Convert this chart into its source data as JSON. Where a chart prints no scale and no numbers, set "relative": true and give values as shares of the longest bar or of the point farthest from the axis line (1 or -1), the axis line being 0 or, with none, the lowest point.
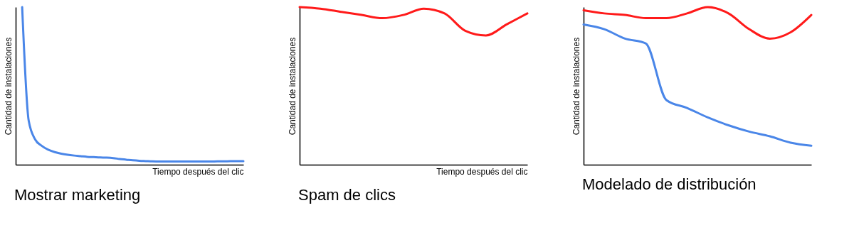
{
  "chart_data": [
    {
      "type": "line",
      "title": "Mostrar marketing",
      "xlabel": "Tiempo después del clic",
      "ylabel": "Cantidad de instalaciones",
      "relative": true,
      "tick_labels": false,
      "categories": [
        null,
        null,
        null,
        null,
        null,
        null,
        null,
        null,
        null,
        null,
        null,
        null,
        null,
        null,
        null,
        null,
        null,
        null,
        null,
        null,
        null,
        null,
        null,
        null,
        null,
        null,
        null,
        null,
        null,
        null,
        null,
        null,
        null,
        null,
        null,
        null
      ],
      "series": [
        {
          "color": "#4a86e8",
          "values": [
            null,
            1.0,
            0.28,
            0.16,
            0.12,
            0.095,
            0.08,
            0.07,
            0.063,
            0.058,
            0.054,
            0.05,
            0.048,
            0.046,
            0.045,
            0.042,
            0.036,
            0.032,
            0.028,
            0.025,
            0.023,
            0.021,
            0.02,
            0.02,
            0.02,
            0.02,
            0.02,
            0.02,
            0.02,
            0.02,
            0.02,
            0.021,
            0.021,
            0.022,
            0.022,
            0.022
          ]
        }
      ]
    },
    {
      "type": "line",
      "title": "Spam de clics",
      "xlabel": "Tiempo después del clic",
      "ylabel": "Cantidad de instalaciones",
      "relative": true,
      "tick_labels": false,
      "categories": [
        null,
        null,
        null,
        null,
        null,
        null,
        null,
        null,
        null,
        null,
        null,
        null
      ],
      "series": [
        {
          "color": "#ff1a1a",
          "values": [
            1.0,
            0.99,
            0.97,
            0.95,
            0.93,
            0.95,
            0.99,
            0.96,
            0.85,
            0.82,
            0.89,
            0.96
          ]
        }
      ]
    },
    {
      "type": "line",
      "title": "Modelado de distribución",
      "ylabel": "Cantidad de instalaciones",
      "relative": true,
      "tick_labels": false,
      "categories": [
        null,
        null,
        null,
        null,
        null,
        null,
        null,
        null,
        null,
        null,
        null,
        null
      ],
      "series": [
        {
          "color": "#ff1a1a",
          "values": [
            0.98,
            0.96,
            0.95,
            0.93,
            0.93,
            0.96,
            1.0,
            0.96,
            0.86,
            0.8,
            0.84,
            0.95
          ]
        },
        {
          "color": "#4a86e8",
          "values": [
            0.89,
            0.86,
            0.8,
            0.77,
            0.41,
            0.36,
            0.3,
            0.25,
            0.21,
            0.18,
            0.14,
            0.12
          ]
        }
      ]
    }
  ]
}
